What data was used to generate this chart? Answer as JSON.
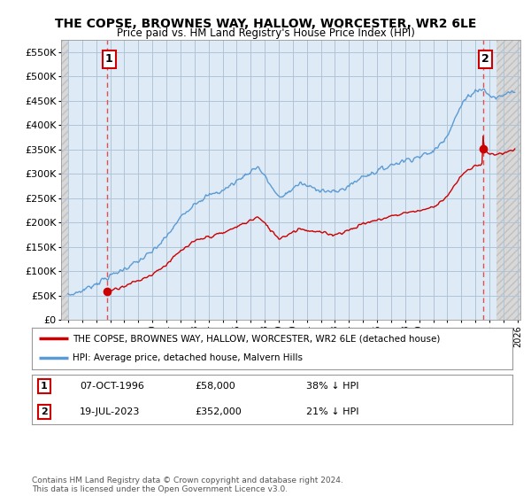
{
  "title": "THE COPSE, BROWNES WAY, HALLOW, WORCESTER, WR2 6LE",
  "subtitle": "Price paid vs. HM Land Registry's House Price Index (HPI)",
  "ylim": [
    0,
    575000
  ],
  "yticks": [
    0,
    50000,
    100000,
    150000,
    200000,
    250000,
    300000,
    350000,
    400000,
    450000,
    500000,
    550000
  ],
  "xlim_start": 1993.5,
  "xlim_end": 2026.2,
  "hpi_color": "#5b9bd5",
  "price_color": "#cc0000",
  "marker_color": "#cc0000",
  "dashed_line_color": "#e05050",
  "chart_bg_color": "#deeaf5",
  "hatch_bg_color": "#e0e0e0",
  "grid_color": "#b0c4d8",
  "future_cutoff": 2024.5,
  "sale1_x": 1996.77,
  "sale1_y": 58000,
  "sale1_label": "1",
  "sale2_x": 2023.54,
  "sale2_y": 352000,
  "sale2_label": "2",
  "legend_line1": "THE COPSE, BROWNES WAY, HALLOW, WORCESTER, WR2 6LE (detached house)",
  "legend_line2": "HPI: Average price, detached house, Malvern Hills",
  "annotation1_date": "07-OCT-1996",
  "annotation1_price": "£58,000",
  "annotation1_hpi": "38% ↓ HPI",
  "annotation2_date": "19-JUL-2023",
  "annotation2_price": "£352,000",
  "annotation2_hpi": "21% ↓ HPI",
  "footnote": "Contains HM Land Registry data © Crown copyright and database right 2024.\nThis data is licensed under the Open Government Licence v3.0."
}
